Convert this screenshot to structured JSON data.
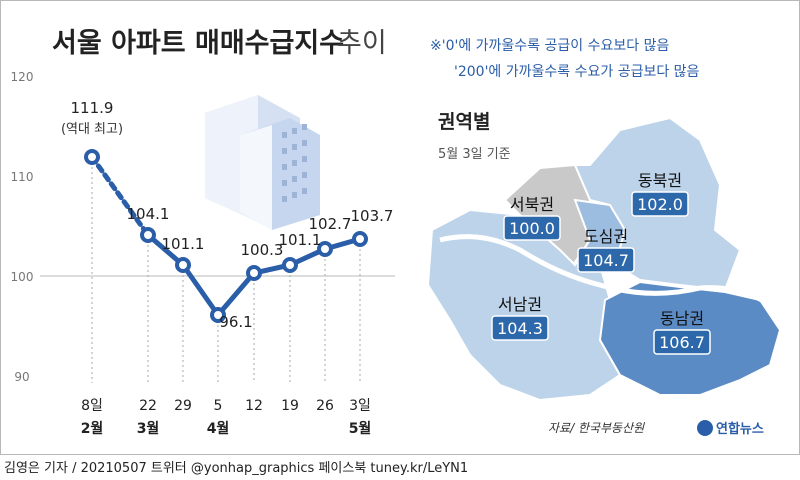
{
  "header": {
    "title_main": "서울 아파트 매매수급지수",
    "title_sub": "추이",
    "note_line1": "※'0'에 가까울수록 공급이 수요보다 많음",
    "note_line2": "'200'에 가까울수록 수요가 공급보다 많음"
  },
  "colors": {
    "accent": "#2b5ea8",
    "map_dark": "#5b8bc4",
    "map_mid": "#9dbde0",
    "map_light": "#bcd3ea",
    "map_gray": "#c9c9c9",
    "label_box": "#2d68aa"
  },
  "chart_data": {
    "type": "line",
    "y_ticks": [
      "90",
      "100",
      "110",
      "120"
    ],
    "ylim": [
      90,
      120
    ],
    "reference_line": 100,
    "categories": [
      "8일",
      "22",
      "29",
      "5",
      "12",
      "19",
      "26",
      "3일"
    ],
    "months": [
      "2월",
      "3월",
      "",
      "4월",
      "",
      "",
      "",
      "5월"
    ],
    "values": [
      111.9,
      104.1,
      101.1,
      96.1,
      100.3,
      101.1,
      102.7,
      103.7
    ],
    "value_labels": [
      "111.9",
      "104.1",
      "101.1",
      "96.1",
      "100.3",
      "101.1",
      "102.7",
      "103.7"
    ],
    "peak_note": "(역대 최고)",
    "dashed_segment": [
      0,
      1
    ]
  },
  "map": {
    "title": "권역별",
    "subtitle": "5월 3일 기준",
    "regions": [
      {
        "name": "서북권",
        "value": "100.0"
      },
      {
        "name": "도심권",
        "value": "104.7"
      },
      {
        "name": "동북권",
        "value": "102.0"
      },
      {
        "name": "서남권",
        "value": "104.3"
      },
      {
        "name": "동남권",
        "value": "106.7"
      }
    ],
    "source": "자료/ 한국부동산원"
  },
  "logo": {
    "text": "연합뉴스"
  },
  "footer": {
    "credit": "김영은 기자 / 20210507  트위터 @yonhap_graphics  페이스북 tuney.kr/LeYN1"
  }
}
